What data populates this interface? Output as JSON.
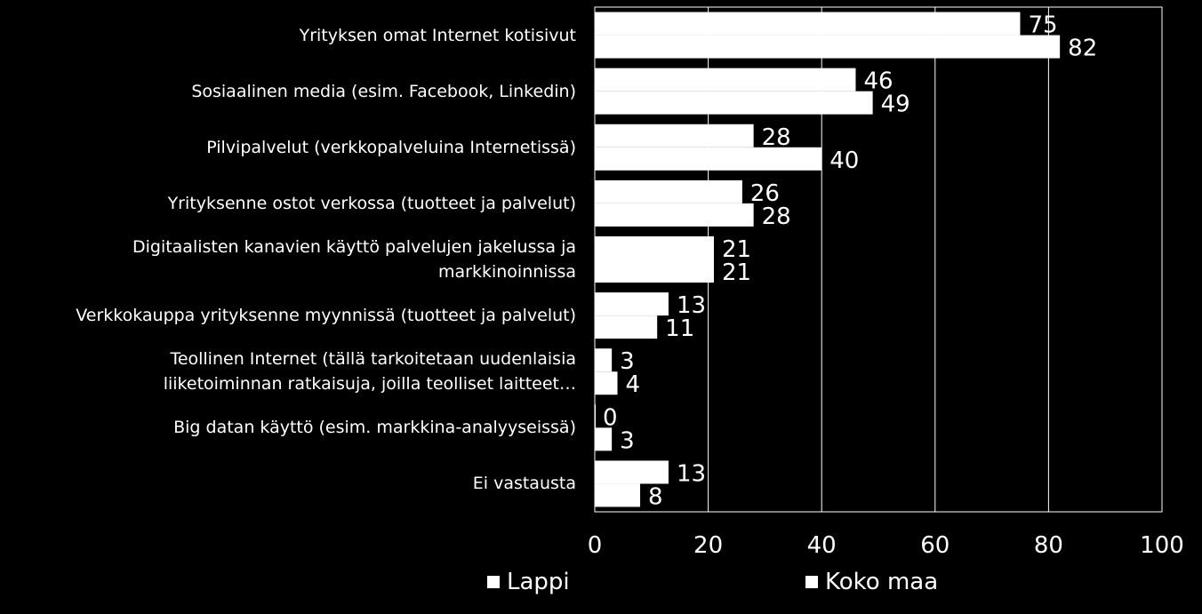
{
  "chart_data": {
    "type": "bar",
    "orientation": "horizontal",
    "categories": [
      "Yrityksen omat Internet kotisivut",
      "Sosiaalinen media (esim. Facebook, Linkedin)",
      "Pilvipalvelut  (verkkopalveluina Internetissä)",
      "Yrityksenne ostot verkossa (tuotteet ja palvelut)",
      "Digitaalisten kanavien käyttö palvelujen jakelussa ja markkinoinnissa",
      "Verkkokauppa yrityksenne myynnissä (tuotteet ja palvelut)",
      "Teollinen Internet (tällä tarkoitetaan uudenlaisia liiketoiminnan ratkaisuja, joilla teolliset laitteet…",
      "Big datan käyttö (esim. markkina-analyyseissä)",
      "Ei vastausta"
    ],
    "category_lines": [
      [
        "Yrityksen omat Internet kotisivut"
      ],
      [
        "Sosiaalinen media (esim. Facebook, Linkedin)"
      ],
      [
        "Pilvipalvelut  (verkkopalveluina Internetissä)"
      ],
      [
        "Yrityksenne ostot verkossa (tuotteet ja palvelut)"
      ],
      [
        "Digitaalisten kanavien käyttö palvelujen jakelussa ja",
        "markkinoinnissa"
      ],
      [
        "Verkkokauppa yrityksenne myynnissä (tuotteet ja palvelut)"
      ],
      [
        "Teollinen Internet (tällä tarkoitetaan uudenlaisia",
        "liiketoiminnan ratkaisuja, joilla teolliset laitteet…"
      ],
      [
        "Big datan käyttö (esim. markkina-analyyseissä)"
      ],
      [
        "Ei vastausta"
      ]
    ],
    "series": [
      {
        "name": "Lappi",
        "values": [
          75,
          46,
          28,
          26,
          21,
          13,
          3,
          0,
          13
        ]
      },
      {
        "name": "Koko maa",
        "values": [
          82,
          49,
          40,
          28,
          21,
          11,
          4,
          3,
          8
        ]
      }
    ],
    "xlim": [
      0,
      100
    ],
    "xticks": [
      0,
      20,
      40,
      60,
      80,
      100
    ],
    "grid": true,
    "legend_position": "bottom",
    "bar_color": "#ffffff",
    "background_color": "#000000",
    "text_color": "#ffffff"
  }
}
